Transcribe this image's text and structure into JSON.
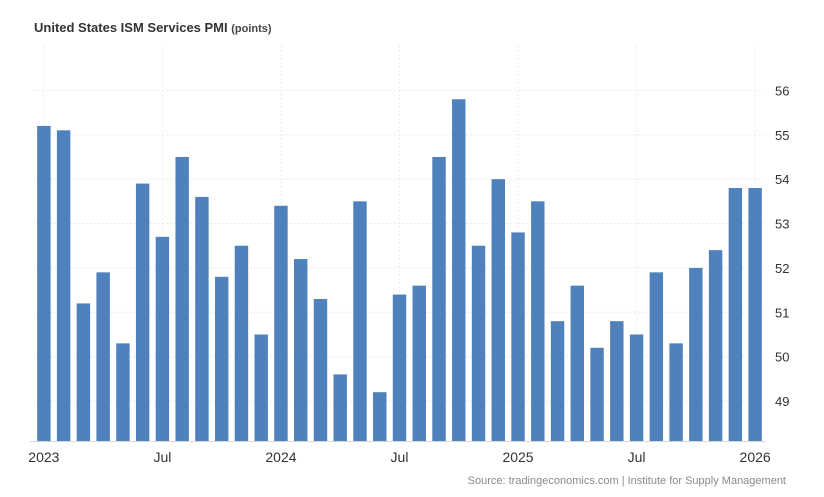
{
  "chart_data": {
    "type": "bar",
    "title": "United States ISM Services PMI",
    "unit": "(points)",
    "categories": [
      "2023-01",
      "2023-02",
      "2023-03",
      "2023-04",
      "2023-05",
      "2023-06",
      "2023-07",
      "2023-08",
      "2023-09",
      "2023-10",
      "2023-11",
      "2023-12",
      "2024-01",
      "2024-02",
      "2024-03",
      "2024-04",
      "2024-05",
      "2024-06",
      "2024-07",
      "2024-08",
      "2024-09",
      "2024-10",
      "2024-11",
      "2024-12",
      "2025-01",
      "2025-02",
      "2025-03",
      "2025-04",
      "2025-05",
      "2025-06",
      "2025-07",
      "2025-08",
      "2025-09",
      "2025-10",
      "2025-11",
      "2025-12",
      "2026-01"
    ],
    "values": [
      55.2,
      55.1,
      51.2,
      51.9,
      50.3,
      53.9,
      52.7,
      54.5,
      53.6,
      51.8,
      52.5,
      50.5,
      53.4,
      52.2,
      51.3,
      49.6,
      53.5,
      49.2,
      51.4,
      51.6,
      54.5,
      55.8,
      52.5,
      54.0,
      52.8,
      53.5,
      50.8,
      51.6,
      50.2,
      50.8,
      50.5,
      51.9,
      50.3,
      52.0,
      52.4,
      53.8,
      53.8
    ],
    "ylim": [
      48.1,
      57.0
    ],
    "yticks": [
      49,
      50,
      51,
      52,
      53,
      54,
      55,
      56
    ],
    "xticks": [
      {
        "index": 0,
        "label": "2023"
      },
      {
        "index": 6,
        "label": "Jul"
      },
      {
        "index": 12,
        "label": "2024"
      },
      {
        "index": 18,
        "label": "Jul"
      },
      {
        "index": 24,
        "label": "2025"
      },
      {
        "index": 30,
        "label": "Jul"
      },
      {
        "index": 36,
        "label": "2026"
      }
    ],
    "color": "#4f81bd",
    "grid": true,
    "yaxis_side": "right"
  },
  "source": "Source: tradingeconomics.com | Institute for Supply Management"
}
